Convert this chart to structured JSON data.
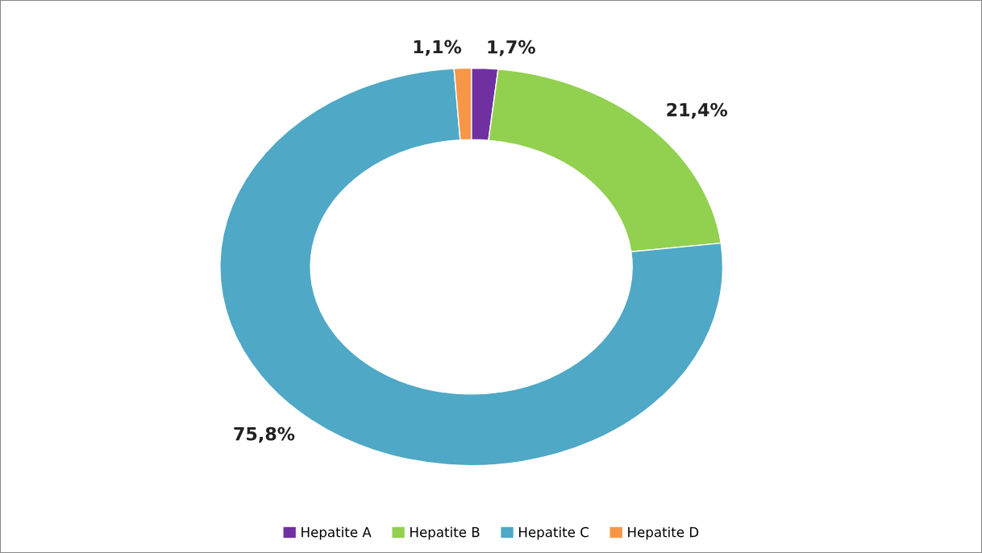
{
  "chart_data": {
    "type": "donut",
    "categories": [
      "Hepatite A",
      "Hepatite B",
      "Hepatite C",
      "Hepatite D"
    ],
    "values": [
      1.7,
      21.4,
      75.8,
      1.1
    ],
    "value_labels": [
      "1,7%",
      "21,4%",
      "75,8%",
      "1,1%"
    ],
    "colors": [
      "#7030a0",
      "#92d050",
      "#4fa8c5",
      "#f79646"
    ],
    "legend": "bottom"
  }
}
